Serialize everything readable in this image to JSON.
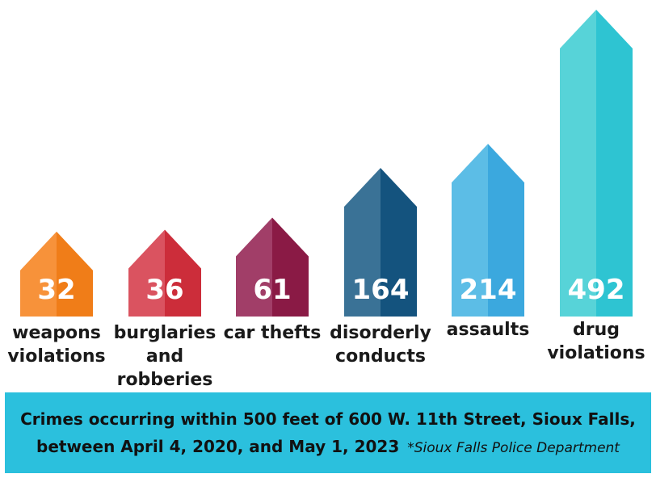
{
  "chart_data": {
    "type": "bar",
    "categories": [
      "weapons violations",
      "burglaries and robberies",
      "car thefts",
      "disorderly conducts",
      "assaults",
      "drug violations"
    ],
    "category_labels": [
      "weapons\nviolations",
      "burglaries\nand\nrobberies",
      "car thefts",
      "disorderly\nconducts",
      "assaults",
      "drug\nviolations"
    ],
    "values": [
      32,
      36,
      61,
      164,
      214,
      492
    ],
    "value_labels": [
      "32",
      "36",
      "61",
      "164",
      "214",
      "492"
    ],
    "ylim": [
      0,
      492
    ],
    "grid": false,
    "colors": [
      {
        "light": "#f7923a",
        "dark": "#f07d18"
      },
      {
        "light": "#da5360",
        "dark": "#cc2d3a"
      },
      {
        "light": "#a13e68",
        "dark": "#8a1a45"
      },
      {
        "light": "#3a7296",
        "dark": "#14537e"
      },
      {
        "light": "#5cbde6",
        "dark": "#3ba8de"
      },
      {
        "light": "#57d3d8",
        "dark": "#2ec4d2"
      }
    ]
  },
  "banner": {
    "line1": "Crimes occurring within 500 feet of 600 W. 11th Street, Sioux Falls,",
    "line2": "between April 4, 2020, and May 1, 2023",
    "source": "*Sioux Falls Police Department",
    "background": "#2bc0dd"
  }
}
